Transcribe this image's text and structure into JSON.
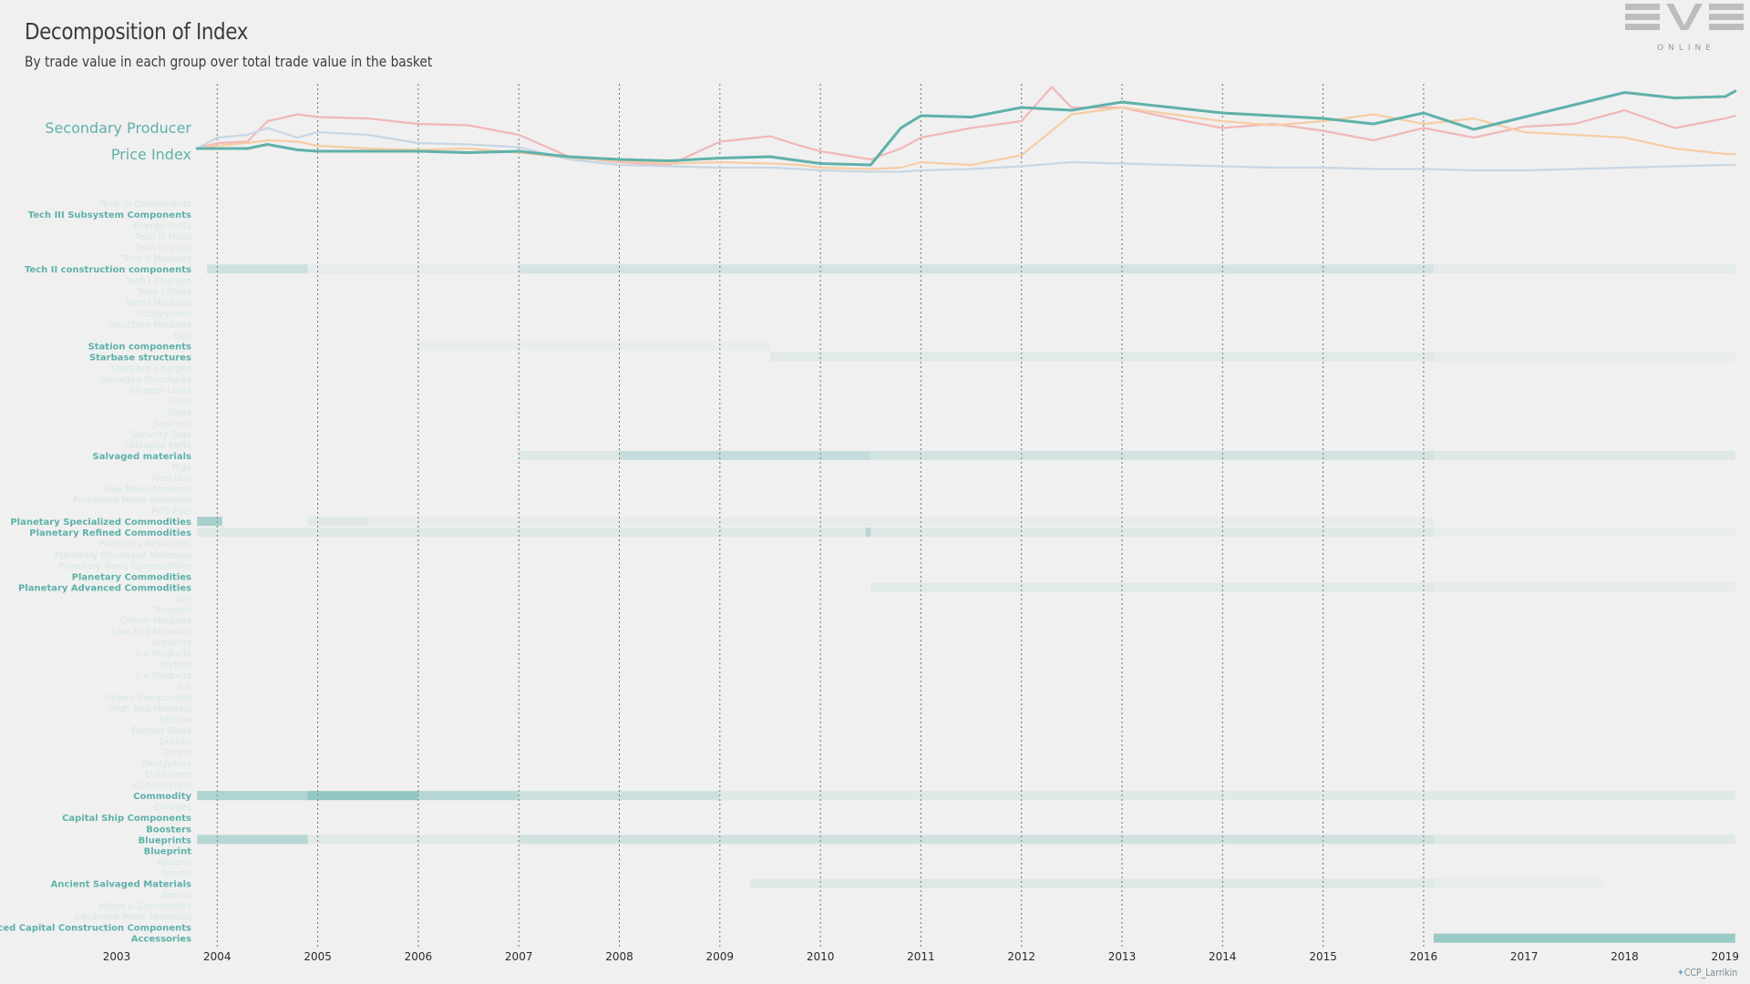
{
  "title": "Decomposition of Index",
  "subtitle": "By trade value in each group over total trade value in the basket",
  "logo": {
    "top": "EVE",
    "bottom": "ONLINE",
    "icon": "eve-online-logo"
  },
  "credit": "CCP_Larrikin",
  "credit_icon": "twitter-bird-icon",
  "colors": {
    "background": "#f0f0f0",
    "teal": "#5fb1aa",
    "pink": "#f2b7b7",
    "orange": "#f6cda4",
    "blue": "#c8d6e3",
    "grid": "#707070"
  },
  "chart_data": [
    {
      "type": "line",
      "title": "",
      "labels": [
        "Secondary Producer",
        "Price Index"
      ],
      "x_range": [
        "2003-10",
        "2019-03"
      ],
      "series": [
        {
          "color": "#5fb1aa",
          "emphasis": true,
          "values": [
            [
              2003.8,
              100
            ],
            [
              2004.0,
              100
            ],
            [
              2004.3,
              100
            ],
            [
              2004.5,
              103
            ],
            [
              2004.8,
              99
            ],
            [
              2005.0,
              98
            ],
            [
              2005.5,
              98
            ],
            [
              2006.0,
              98
            ],
            [
              2006.5,
              97
            ],
            [
              2007.0,
              98
            ],
            [
              2007.5,
              94
            ],
            [
              2008.0,
              92
            ],
            [
              2008.5,
              91
            ],
            [
              2009.0,
              93
            ],
            [
              2009.5,
              94
            ],
            [
              2009.8,
              91
            ],
            [
              2010.0,
              89
            ],
            [
              2010.5,
              88
            ],
            [
              2010.8,
              115
            ],
            [
              2011.0,
              124
            ],
            [
              2011.5,
              123
            ],
            [
              2012.0,
              130
            ],
            [
              2012.5,
              128
            ],
            [
              2013.0,
              134
            ],
            [
              2013.5,
              130
            ],
            [
              2014.0,
              126
            ],
            [
              2014.5,
              124
            ],
            [
              2015.0,
              122
            ],
            [
              2015.5,
              118
            ],
            [
              2016.0,
              126
            ],
            [
              2016.5,
              114
            ],
            [
              2017.0,
              123
            ],
            [
              2017.5,
              132
            ],
            [
              2018.0,
              141
            ],
            [
              2018.5,
              137
            ],
            [
              2019.0,
              138
            ],
            [
              2019.1,
              142
            ]
          ]
        },
        {
          "color": "#f2b7b7",
          "values": [
            [
              2003.8,
              100
            ],
            [
              2004.0,
              104
            ],
            [
              2004.3,
              105
            ],
            [
              2004.5,
              120
            ],
            [
              2004.8,
              125
            ],
            [
              2005.0,
              123
            ],
            [
              2005.5,
              122
            ],
            [
              2006.0,
              118
            ],
            [
              2006.5,
              117
            ],
            [
              2007.0,
              110
            ],
            [
              2007.5,
              94
            ],
            [
              2008.0,
              90
            ],
            [
              2008.5,
              88
            ],
            [
              2009.0,
              105
            ],
            [
              2009.5,
              109
            ],
            [
              2009.8,
              102
            ],
            [
              2010.0,
              98
            ],
            [
              2010.5,
              92
            ],
            [
              2010.8,
              100
            ],
            [
              2011.0,
              108
            ],
            [
              2011.5,
              115
            ],
            [
              2012.0,
              120
            ],
            [
              2012.3,
              145
            ],
            [
              2012.5,
              130
            ],
            [
              2013.0,
              130
            ],
            [
              2013.5,
              122
            ],
            [
              2014.0,
              115
            ],
            [
              2014.5,
              118
            ],
            [
              2015.0,
              113
            ],
            [
              2015.5,
              106
            ],
            [
              2016.0,
              115
            ],
            [
              2016.5,
              108
            ],
            [
              2017.0,
              116
            ],
            [
              2017.5,
              118
            ],
            [
              2018.0,
              128
            ],
            [
              2018.5,
              115
            ],
            [
              2019.0,
              122
            ],
            [
              2019.1,
              124
            ]
          ]
        },
        {
          "color": "#f6cda4",
          "values": [
            [
              2003.8,
              100
            ],
            [
              2004.0,
              102
            ],
            [
              2004.3,
              104
            ],
            [
              2004.5,
              106
            ],
            [
              2004.8,
              105
            ],
            [
              2005.0,
              102
            ],
            [
              2005.5,
              100
            ],
            [
              2006.0,
              99
            ],
            [
              2006.5,
              100
            ],
            [
              2007.0,
              97
            ],
            [
              2007.5,
              93
            ],
            [
              2008.0,
              91
            ],
            [
              2008.5,
              89
            ],
            [
              2009.0,
              90
            ],
            [
              2009.5,
              89
            ],
            [
              2009.8,
              88
            ],
            [
              2010.0,
              86
            ],
            [
              2010.5,
              85
            ],
            [
              2010.8,
              86
            ],
            [
              2011.0,
              90
            ],
            [
              2011.5,
              88
            ],
            [
              2012.0,
              95
            ],
            [
              2012.5,
              125
            ],
            [
              2013.0,
              130
            ],
            [
              2013.5,
              125
            ],
            [
              2014.0,
              120
            ],
            [
              2014.5,
              117
            ],
            [
              2015.0,
              120
            ],
            [
              2015.5,
              125
            ],
            [
              2016.0,
              118
            ],
            [
              2016.5,
              122
            ],
            [
              2017.0,
              112
            ],
            [
              2017.5,
              110
            ],
            [
              2018.0,
              108
            ],
            [
              2018.5,
              100
            ],
            [
              2019.0,
              96
            ],
            [
              2019.1,
              96
            ]
          ]
        },
        {
          "color": "#c8d6e3",
          "values": [
            [
              2003.8,
              100
            ],
            [
              2004.0,
              108
            ],
            [
              2004.3,
              110
            ],
            [
              2004.5,
              115
            ],
            [
              2004.8,
              108
            ],
            [
              2005.0,
              112
            ],
            [
              2005.5,
              110
            ],
            [
              2006.0,
              104
            ],
            [
              2006.5,
              103
            ],
            [
              2007.0,
              101
            ],
            [
              2007.5,
              92
            ],
            [
              2008.0,
              88
            ],
            [
              2008.5,
              87
            ],
            [
              2009.0,
              86
            ],
            [
              2009.5,
              86
            ],
            [
              2009.8,
              85
            ],
            [
              2010.0,
              84
            ],
            [
              2010.5,
              83
            ],
            [
              2010.8,
              83
            ],
            [
              2011.0,
              84
            ],
            [
              2011.5,
              85
            ],
            [
              2012.0,
              87
            ],
            [
              2012.5,
              90
            ],
            [
              2013.0,
              89
            ],
            [
              2013.5,
              88
            ],
            [
              2014.0,
              87
            ],
            [
              2014.5,
              86
            ],
            [
              2015.0,
              86
            ],
            [
              2015.5,
              85
            ],
            [
              2016.0,
              85
            ],
            [
              2016.5,
              84
            ],
            [
              2017.0,
              84
            ],
            [
              2017.5,
              85
            ],
            [
              2018.0,
              86
            ],
            [
              2018.5,
              87
            ],
            [
              2019.0,
              88
            ],
            [
              2019.1,
              88
            ]
          ]
        }
      ]
    },
    {
      "type": "heatmap",
      "x_ticks": [
        "2003",
        "2004",
        "2005",
        "2006",
        "2007",
        "2008",
        "2009",
        "2010",
        "2011",
        "2012",
        "2013",
        "2014",
        "2015",
        "2016",
        "2017",
        "2018",
        "2019"
      ],
      "rows": [
        "Tech III Components",
        "Tech III Subsystem Components",
        "Energy Units",
        "Tech III Hulls",
        "Tech II Ships",
        "Tech II Modules",
        "Tech II construction components",
        "Tech I Charges",
        "Tech I Ships",
        "Tech I Modules",
        "Subsystems",
        "Structure Modules",
        "Gas",
        "Station components",
        "Starbase structures",
        "Starbase Charges",
        "Salvaged Structures",
        "Sleeper Loots",
        "Skills",
        "Ships",
        "Services",
        "Security Tags",
        "Salvaged Parts",
        "Salvaged materials",
        "Rigs",
        "Reaction",
        "Raw Moon Minerals",
        "Processed Moon Materials",
        "POS Fuel",
        "Planetary Specialized Commodities",
        "Planetary Refined Commodities",
        "Planetary Resources",
        "Planetary Processed Materials",
        "Planetary Basic Commodities",
        "Planetary Commodities",
        "Planetary Advanced Commodities",
        "Ore",
        "Modules",
        "Officer Modules",
        "Low End Minerals",
        "Implants",
        "Ice Products",
        "Hybrid",
        "Ice Products",
        "Ice",
        "Hybrid Compounds",
        "High End Minerals",
        "Faction",
        "Faction Ships",
        "Drones",
        "Drone",
        "Decryptors",
        "Datacores",
        "Construction",
        "Commodity",
        "Charges",
        "Capital Ship Components",
        "Boosters",
        "Blueprints",
        "Blueprint",
        "Apparel",
        "Ammo",
        "Ancient Salvaged Materials",
        "Ammo",
        "Alloys & Composites",
        "Advanced Moon Materials",
        "Advanced Capital Construction Components",
        "Accessories"
      ],
      "highlight_rows": [
        1,
        6,
        13,
        14,
        23,
        29,
        30,
        34,
        35,
        54,
        56,
        57,
        58,
        59,
        62,
        66,
        67
      ],
      "segments": [
        {
          "row": 6,
          "x0": 2003.9,
          "x1": 2004.9,
          "intensity": 0.25
        },
        {
          "row": 6,
          "x0": 2004.9,
          "x1": 2007.0,
          "intensity": 0.05
        },
        {
          "row": 6,
          "x0": 2007.0,
          "x1": 2016.1,
          "intensity": 0.18
        },
        {
          "row": 6,
          "x0": 2016.1,
          "x1": 2019.1,
          "intensity": 0.08
        },
        {
          "row": 13,
          "x0": 2006.0,
          "x1": 2009.5,
          "intensity": 0.04
        },
        {
          "row": 14,
          "x0": 2009.5,
          "x1": 2016.1,
          "intensity": 0.1
        },
        {
          "row": 14,
          "x0": 2016.1,
          "x1": 2019.1,
          "intensity": 0.05
        },
        {
          "row": 23,
          "x0": 2007.0,
          "x1": 2008.0,
          "intensity": 0.12
        },
        {
          "row": 23,
          "x0": 2008.0,
          "x1": 2010.5,
          "intensity": 0.3
        },
        {
          "row": 23,
          "x0": 2010.5,
          "x1": 2016.1,
          "intensity": 0.2
        },
        {
          "row": 23,
          "x0": 2016.1,
          "x1": 2019.1,
          "intensity": 0.12
        },
        {
          "row": 29,
          "x0": 2003.8,
          "x1": 2004.05,
          "intensity": 0.5
        },
        {
          "row": 29,
          "x0": 2004.9,
          "x1": 2005.5,
          "intensity": 0.1
        },
        {
          "row": 29,
          "x0": 2005.5,
          "x1": 2016.1,
          "intensity": 0.06
        },
        {
          "row": 30,
          "x0": 2003.8,
          "x1": 2016.1,
          "intensity": 0.12
        },
        {
          "row": 30,
          "x0": 2010.45,
          "x1": 2010.5,
          "intensity": 0.3
        },
        {
          "row": 30,
          "x0": 2016.1,
          "x1": 2019.1,
          "intensity": 0.05
        },
        {
          "row": 35,
          "x0": 2010.5,
          "x1": 2016.1,
          "intensity": 0.1
        },
        {
          "row": 35,
          "x0": 2016.1,
          "x1": 2019.1,
          "intensity": 0.06
        },
        {
          "row": 54,
          "x0": 2003.8,
          "x1": 2004.9,
          "intensity": 0.45
        },
        {
          "row": 54,
          "x0": 2004.9,
          "x1": 2006.0,
          "intensity": 0.65
        },
        {
          "row": 54,
          "x0": 2006.0,
          "x1": 2007.0,
          "intensity": 0.4
        },
        {
          "row": 54,
          "x0": 2007.0,
          "x1": 2009.0,
          "intensity": 0.25
        },
        {
          "row": 54,
          "x0": 2009.0,
          "x1": 2019.1,
          "intensity": 0.1
        },
        {
          "row": 58,
          "x0": 2003.8,
          "x1": 2004.9,
          "intensity": 0.4
        },
        {
          "row": 58,
          "x0": 2004.9,
          "x1": 2007.0,
          "intensity": 0.1
        },
        {
          "row": 58,
          "x0": 2007.0,
          "x1": 2016.1,
          "intensity": 0.22
        },
        {
          "row": 58,
          "x0": 2016.1,
          "x1": 2019.1,
          "intensity": 0.12
        },
        {
          "row": 62,
          "x0": 2009.3,
          "x1": 2016.1,
          "intensity": 0.12
        },
        {
          "row": 62,
          "x0": 2016.1,
          "x1": 2017.8,
          "intensity": 0.05
        },
        {
          "row": 67,
          "x0": 2016.1,
          "x1": 2019.1,
          "intensity": 0.6
        }
      ]
    }
  ]
}
